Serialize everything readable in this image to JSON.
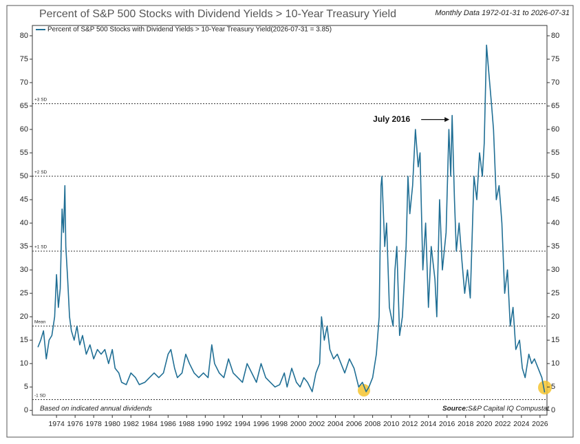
{
  "chart_data": {
    "type": "line",
    "title": "Percent of S&P 500 Stocks with Dividend Yields > 10-Year Treasury Yield",
    "subtitle": "Monthly Data 1972-01-31 to 2026-07-31",
    "footnote": "Based on indicated annual dividends",
    "source_label": "Source:",
    "source": "S&P Capital IQ Compustat",
    "xlim": [
      1971.4,
      2026.75
    ],
    "xticks": [
      1974,
      1976,
      1978,
      1980,
      1982,
      1984,
      1986,
      1988,
      1990,
      1992,
      1994,
      1996,
      1998,
      2000,
      2002,
      2004,
      2006,
      2008,
      2010,
      2012,
      2014,
      2016,
      2018,
      2020,
      2022,
      2024,
      2026
    ],
    "ylim": [
      -1,
      82.2
    ],
    "yticks": [
      0,
      5,
      10,
      15,
      20,
      25,
      30,
      35,
      40,
      45,
      50,
      55,
      60,
      65,
      70,
      75,
      80
    ],
    "reference_lines": [
      {
        "label": "+3 SD",
        "value": 65.5
      },
      {
        "label": "+2 SD",
        "value": 50
      },
      {
        "label": "+1 SD",
        "value": 34
      },
      {
        "label": "Mean",
        "value": 18
      },
      {
        "label": "-1 SD",
        "value": 2.3
      }
    ],
    "annotations": [
      {
        "text": "July 2016",
        "x": 2016.55,
        "y": 63
      }
    ],
    "x": [
      1972.0,
      1972.3,
      1972.6,
      1972.9,
      1973.2,
      1973.5,
      1973.8,
      1974.0,
      1974.2,
      1974.4,
      1974.6,
      1974.75,
      1974.9,
      1975.0,
      1975.2,
      1975.4,
      1975.6,
      1975.9,
      1976.2,
      1976.5,
      1976.8,
      1977.2,
      1977.6,
      1978.0,
      1978.4,
      1978.8,
      1979.2,
      1979.6,
      1980.0,
      1980.3,
      1980.7,
      1981.0,
      1981.5,
      1982.0,
      1982.5,
      1982.9,
      1983.5,
      1984.0,
      1984.5,
      1985.0,
      1985.5,
      1986.0,
      1986.3,
      1986.7,
      1987.0,
      1987.5,
      1987.9,
      1988.3,
      1988.8,
      1989.3,
      1989.8,
      1990.3,
      1990.7,
      1991.0,
      1991.5,
      1992.0,
      1992.5,
      1993.0,
      1993.5,
      1994.0,
      1994.5,
      1995.0,
      1995.5,
      1996.0,
      1996.5,
      1997.0,
      1997.5,
      1998.0,
      1998.5,
      1998.8,
      1999.3,
      1999.8,
      2000.2,
      2000.6,
      2001.0,
      2001.5,
      2001.9,
      2002.3,
      2002.5,
      2002.8,
      2003.1,
      2003.4,
      2003.8,
      2004.2,
      2004.6,
      2005.0,
      2005.5,
      2006.0,
      2006.5,
      2006.9,
      2007.3,
      2007.6,
      2008.0,
      2008.4,
      2008.7,
      2008.9,
      2009.0,
      2009.3,
      2009.5,
      2009.8,
      2010.2,
      2010.4,
      2010.6,
      2010.9,
      2011.2,
      2011.6,
      2011.8,
      2012.0,
      2012.3,
      2012.6,
      2012.9,
      2013.1,
      2013.4,
      2013.7,
      2014.0,
      2014.3,
      2014.7,
      2014.9,
      2015.2,
      2015.5,
      2015.9,
      2016.2,
      2016.4,
      2016.55,
      2016.8,
      2017.0,
      2017.3,
      2017.6,
      2017.9,
      2018.2,
      2018.5,
      2018.9,
      2019.2,
      2019.5,
      2019.8,
      2020.0,
      2020.25,
      2020.5,
      2020.8,
      2021.0,
      2021.3,
      2021.6,
      2021.9,
      2022.2,
      2022.5,
      2022.8,
      2023.1,
      2023.4,
      2023.8,
      2024.1,
      2024.4,
      2024.8,
      2025.1,
      2025.4,
      2025.8,
      2026.2,
      2026.5
    ],
    "series": [
      {
        "name": "Percent of S&P 500 Stocks with Dividend Yields > 10-Year Treasury Yield(2026-07-31 = 3.85)",
        "color": "#1f6e94",
        "values": [
          13.5,
          15,
          17,
          11,
          15,
          16,
          20,
          29,
          22,
          26,
          43,
          38,
          48,
          35,
          28,
          20,
          17,
          15,
          18,
          14,
          16,
          12,
          14,
          11,
          13,
          12,
          13,
          10,
          13,
          9,
          8,
          6,
          5.5,
          8,
          7,
          5.5,
          6,
          7,
          8,
          7,
          8,
          12,
          13,
          9,
          7,
          8,
          12,
          10,
          8,
          7,
          8,
          7,
          14,
          10,
          8,
          7,
          11,
          8,
          7,
          6,
          10,
          8,
          6,
          10,
          7,
          6,
          5,
          5.5,
          8,
          5,
          9,
          6,
          5,
          7,
          6,
          4,
          8,
          10,
          20,
          15,
          18,
          13,
          11,
          12,
          10,
          8,
          11,
          9,
          5,
          6,
          4,
          5,
          7,
          12,
          20,
          48,
          50,
          35,
          40,
          22,
          18,
          30,
          35,
          16,
          20,
          35,
          50,
          42,
          48,
          60,
          52,
          55,
          30,
          40,
          22,
          35,
          28,
          20,
          45,
          30,
          38,
          60,
          50,
          63,
          45,
          34,
          40,
          32,
          25,
          30,
          24,
          50,
          45,
          55,
          50,
          57,
          78,
          72,
          65,
          60,
          45,
          48,
          40,
          25,
          30,
          18,
          22,
          13,
          15,
          9,
          7,
          12,
          10,
          11,
          9,
          7,
          3.85
        ]
      }
    ]
  }
}
